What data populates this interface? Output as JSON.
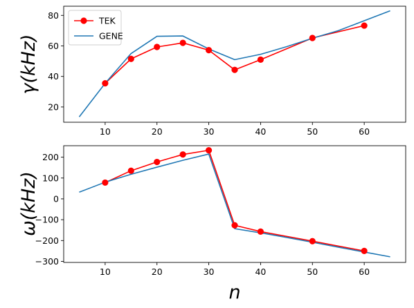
{
  "chart_data": [
    {
      "type": "line",
      "xlabel": "",
      "ylabel": "γ(kHz)",
      "xlim": [
        2.0,
        68.0
      ],
      "ylim": [
        10.0,
        86.0
      ],
      "xticks": [
        10,
        20,
        30,
        40,
        50,
        60
      ],
      "yticks": [
        20,
        40,
        60,
        80
      ],
      "grid": false,
      "legend_position": "top-left",
      "series": [
        {
          "name": "TEK",
          "color": "#ff0000",
          "marker": "circle",
          "x": [
            10,
            15,
            20,
            25,
            30,
            35,
            40,
            50,
            60
          ],
          "y": [
            35.5,
            51.5,
            59.3,
            62.0,
            57.2,
            44.3,
            51.0,
            65.2,
            73.3
          ]
        },
        {
          "name": "GENE",
          "color": "#1f77b4",
          "marker": "none",
          "x": [
            5,
            10,
            15,
            20,
            25,
            30,
            35,
            40,
            45,
            50,
            55,
            60,
            65
          ],
          "y": [
            13.5,
            35.5,
            55.0,
            66.3,
            66.5,
            58.0,
            51.0,
            54.5,
            59.5,
            65.0,
            70.0,
            76.5,
            83.0
          ]
        }
      ]
    },
    {
      "type": "line",
      "xlabel": "n",
      "ylabel": "ω(kHz)",
      "xlim": [
        2.0,
        68.0
      ],
      "ylim": [
        -305.0,
        255.0
      ],
      "xticks": [
        10,
        20,
        30,
        40,
        50,
        60
      ],
      "yticks": [
        -300,
        -200,
        -100,
        0,
        100,
        200
      ],
      "grid": false,
      "series": [
        {
          "name": "TEK",
          "color": "#ff0000",
          "marker": "circle",
          "x": [
            10,
            15,
            20,
            25,
            30,
            35,
            40,
            50,
            60
          ],
          "y": [
            78,
            135,
            177,
            213,
            233,
            -127,
            -157,
            -203,
            -250
          ]
        },
        {
          "name": "GENE",
          "color": "#1f77b4",
          "marker": "none",
          "x": [
            5,
            10,
            15,
            20,
            25,
            30,
            35,
            40,
            45,
            50,
            55,
            60,
            65
          ],
          "y": [
            32,
            80,
            118,
            152,
            185,
            215,
            -143,
            -163,
            -185,
            -208,
            -232,
            -255,
            -278
          ]
        }
      ]
    }
  ]
}
